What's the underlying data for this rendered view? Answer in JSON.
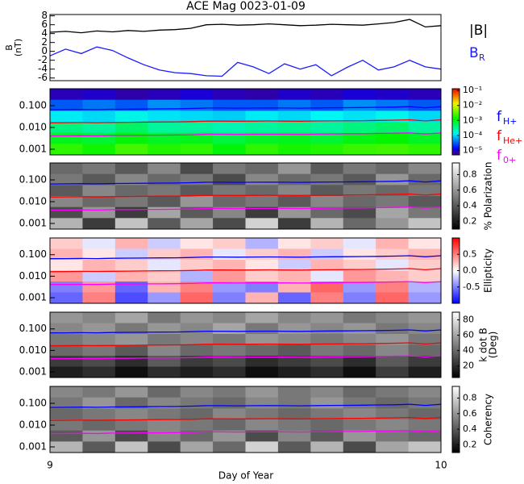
{
  "title": "ACE Mag 0023-01-09",
  "xlabel": "Day of Year",
  "xlim": [
    9,
    10
  ],
  "xticks": [
    9,
    10
  ],
  "chart_data": [
    {
      "type": "line",
      "ylabel": [
        "B",
        "(nT)"
      ],
      "ylim": [
        -6.6,
        8.3
      ],
      "yticks": [
        -6,
        -4,
        -2,
        0,
        2,
        4,
        6,
        8
      ],
      "x": [
        9.0,
        9.04,
        9.08,
        9.12,
        9.16,
        9.2,
        9.24,
        9.28,
        9.32,
        9.36,
        9.4,
        9.44,
        9.48,
        9.52,
        9.56,
        9.6,
        9.64,
        9.68,
        9.72,
        9.76,
        9.8,
        9.84,
        9.88,
        9.92,
        9.96,
        10.0
      ],
      "series": [
        {
          "name": "|B|",
          "color": "#000000",
          "values": [
            4.3,
            4.5,
            4.2,
            4.6,
            4.4,
            4.7,
            4.5,
            4.8,
            4.9,
            5.2,
            6.0,
            6.1,
            5.9,
            6.0,
            6.2,
            6.0,
            5.8,
            5.9,
            6.1,
            6.0,
            5.9,
            6.2,
            6.5,
            7.2,
            5.5,
            5.8
          ]
        },
        {
          "name": "B",
          "subscript": "R",
          "color": "#1a1aff",
          "values": [
            -1.0,
            0.5,
            -0.5,
            1.0,
            0.2,
            -1.5,
            -3.0,
            -4.2,
            -4.8,
            -5.0,
            -5.5,
            -5.6,
            -2.5,
            -3.5,
            -5.0,
            -2.8,
            -4.0,
            -3.0,
            -5.5,
            -3.6,
            -2.0,
            -4.2,
            -3.5,
            -2.0,
            -3.5,
            -4.0
          ]
        }
      ]
    },
    {
      "type": "heatmap",
      "ylog": true,
      "ylim": [
        0.00055,
        0.6
      ],
      "yticks": [
        {
          "value": 0.001,
          "label": "0.001"
        },
        {
          "value": 0.01,
          "label": "0.010"
        },
        {
          "value": 0.1,
          "label": "0.100"
        }
      ],
      "colormap": "rainbow",
      "zlog": true,
      "zlim": [
        5e-06,
        0.13
      ],
      "zticks": [
        {
          "value": 0.1,
          "label": "10⁻¹"
        },
        {
          "value": 0.01,
          "label": "10⁻²"
        },
        {
          "value": 0.001,
          "label": "10⁻³"
        },
        {
          "value": 0.0001,
          "label": "10⁻⁴"
        },
        {
          "value": 1e-05,
          "label": "10⁻⁵"
        }
      ],
      "z": [
        [
          8e-06,
          9e-06,
          7e-06,
          8e-06,
          1e-05,
          8e-06,
          7e-06,
          9e-06,
          8e-06,
          1e-05,
          9e-06,
          8e-06
        ],
        [
          3e-05,
          4e-05,
          3e-05,
          5e-05,
          4e-05,
          3e-05,
          3e-05,
          4e-05,
          3e-05,
          5e-05,
          4e-05,
          3e-05
        ],
        [
          0.00012,
          0.0001,
          0.00015,
          0.00011,
          0.0001,
          9e-05,
          0.00012,
          0.0001,
          0.00013,
          0.00011,
          0.00014,
          0.0001
        ],
        [
          0.0004,
          0.0003,
          0.0005,
          0.0003,
          0.0003,
          0.00025,
          0.0003,
          0.00035,
          0.0003,
          0.0004,
          0.0005,
          0.0003
        ],
        [
          0.001,
          0.0008,
          0.0012,
          0.0009,
          0.001,
          0.0007,
          0.0009,
          0.001,
          0.0008,
          0.0011,
          0.0013,
          0.0009
        ],
        [
          0.002,
          0.0015,
          0.0025,
          0.0018,
          0.002,
          0.0012,
          0.002,
          0.0016,
          0.0018,
          0.0022,
          0.0024,
          0.002
        ]
      ]
    },
    {
      "type": "heatmap",
      "ylog": true,
      "ylim": [
        0.00055,
        0.6
      ],
      "yticks": [
        {
          "value": 0.001,
          "label": "0.001"
        },
        {
          "value": 0.01,
          "label": "0.010"
        },
        {
          "value": 0.1,
          "label": "0.100"
        }
      ],
      "colormap": "gray",
      "zlim": [
        0.1,
        0.95
      ],
      "zticks": [
        0.2,
        0.4,
        0.6,
        0.8
      ],
      "zlabel": [
        "% Polarization"
      ],
      "z": [
        [
          0.45,
          0.5,
          0.4,
          0.55,
          0.35,
          0.5,
          0.45,
          0.6,
          0.4,
          0.5,
          0.45,
          0.55
        ],
        [
          0.5,
          0.4,
          0.55,
          0.45,
          0.5,
          0.35,
          0.55,
          0.45,
          0.5,
          0.4,
          0.6,
          0.45
        ],
        [
          0.4,
          0.55,
          0.45,
          0.5,
          0.4,
          0.5,
          0.45,
          0.55,
          0.4,
          0.5,
          0.45,
          0.5
        ],
        [
          0.55,
          0.45,
          0.5,
          0.4,
          0.6,
          0.45,
          0.5,
          0.4,
          0.55,
          0.45,
          0.5,
          0.4
        ],
        [
          0.35,
          0.6,
          0.3,
          0.65,
          0.4,
          0.55,
          0.3,
          0.6,
          0.45,
          0.35,
          0.65,
          0.5
        ],
        [
          0.7,
          0.3,
          0.75,
          0.4,
          0.65,
          0.35,
          0.8,
          0.3,
          0.7,
          0.45,
          0.6,
          0.75
        ]
      ]
    },
    {
      "type": "heatmap",
      "ylog": true,
      "ylim": [
        0.00055,
        0.6
      ],
      "yticks": [
        {
          "value": 0.001,
          "label": "0.001"
        },
        {
          "value": 0.01,
          "label": "0.010"
        },
        {
          "value": 0.1,
          "label": "0.100"
        }
      ],
      "colormap": "bwr",
      "zlim": [
        -1,
        1
      ],
      "zticks": [
        -0.5,
        {
          "value": 0,
          "label": "0.0"
        },
        0.5
      ],
      "zlabel": [
        "Ellipticity"
      ],
      "z": [
        [
          0.2,
          -0.1,
          0.3,
          -0.2,
          0.1,
          0.2,
          -0.3,
          0.1,
          0.2,
          -0.1,
          0.3,
          0.1
        ],
        [
          0.3,
          0.1,
          -0.2,
          0.2,
          0.3,
          -0.1,
          0.2,
          0.3,
          -0.2,
          0.1,
          0.2,
          0.3
        ],
        [
          0.1,
          0.3,
          0.2,
          -0.1,
          0.2,
          0.3,
          0.1,
          -0.2,
          0.3,
          0.2,
          -0.1,
          0.2
        ],
        [
          0.4,
          -0.2,
          0.3,
          0.2,
          -0.3,
          0.4,
          0.2,
          0.3,
          -0.1,
          0.4,
          0.3,
          0.2
        ],
        [
          -0.5,
          0.4,
          -0.6,
          0.3,
          0.5,
          -0.4,
          -0.5,
          0.3,
          0.6,
          -0.4,
          0.5,
          -0.3
        ],
        [
          -0.6,
          0.5,
          -0.7,
          -0.4,
          0.6,
          -0.5,
          0.3,
          -0.6,
          0.5,
          -0.5,
          0.6,
          -0.4
        ]
      ]
    },
    {
      "type": "heatmap",
      "ylog": true,
      "ylim": [
        0.00055,
        0.6
      ],
      "yticks": [
        {
          "value": 0.001,
          "label": "0.001"
        },
        {
          "value": 0.01,
          "label": "0.010"
        },
        {
          "value": 0.1,
          "label": "0.100"
        }
      ],
      "colormap": "gray",
      "zlim": [
        5,
        90
      ],
      "zticks": [
        20,
        40,
        60,
        80
      ],
      "zlabel": [
        "k dot B",
        "(Deg)"
      ],
      "z": [
        [
          55,
          50,
          60,
          45,
          55,
          50,
          60,
          50,
          55,
          45,
          50,
          55
        ],
        [
          50,
          55,
          45,
          55,
          50,
          60,
          45,
          55,
          50,
          55,
          45,
          50
        ],
        [
          45,
          50,
          55,
          45,
          50,
          45,
          55,
          50,
          45,
          50,
          55,
          45
        ],
        [
          40,
          45,
          35,
          50,
          40,
          45,
          40,
          35,
          45,
          40,
          50,
          40
        ],
        [
          25,
          30,
          20,
          35,
          25,
          30,
          20,
          25,
          30,
          20,
          35,
          25
        ],
        [
          15,
          20,
          10,
          20,
          15,
          20,
          10,
          15,
          20,
          10,
          25,
          15
        ]
      ]
    },
    {
      "type": "heatmap",
      "ylog": true,
      "ylim": [
        0.00055,
        0.6
      ],
      "yticks": [
        {
          "value": 0.001,
          "label": "0.001"
        },
        {
          "value": 0.01,
          "label": "0.010"
        },
        {
          "value": 0.1,
          "label": "0.100"
        }
      ],
      "colormap": "gray",
      "zlim": [
        0.1,
        0.95
      ],
      "zticks": [
        0.2,
        0.4,
        0.6,
        0.8
      ],
      "zlabel": [
        "Coherency"
      ],
      "z": [
        [
          0.55,
          0.5,
          0.6,
          0.45,
          0.55,
          0.5,
          0.6,
          0.5,
          0.55,
          0.45,
          0.5,
          0.55
        ],
        [
          0.5,
          0.6,
          0.45,
          0.55,
          0.5,
          0.45,
          0.55,
          0.5,
          0.6,
          0.5,
          0.45,
          0.5
        ],
        [
          0.45,
          0.5,
          0.55,
          0.5,
          0.45,
          0.55,
          0.5,
          0.45,
          0.5,
          0.55,
          0.5,
          0.45
        ],
        [
          0.5,
          0.45,
          0.5,
          0.55,
          0.5,
          0.45,
          0.55,
          0.5,
          0.45,
          0.5,
          0.55,
          0.5
        ],
        [
          0.4,
          0.6,
          0.35,
          0.55,
          0.45,
          0.6,
          0.35,
          0.55,
          0.4,
          0.6,
          0.5,
          0.45
        ],
        [
          0.7,
          0.4,
          0.75,
          0.35,
          0.65,
          0.45,
          0.8,
          0.4,
          0.7,
          0.35,
          0.65,
          0.75
        ]
      ]
    }
  ],
  "overlay": {
    "x": [
      9.0,
      9.04,
      9.08,
      9.12,
      9.16,
      9.2,
      9.24,
      9.28,
      9.32,
      9.36,
      9.4,
      9.44,
      9.48,
      9.52,
      9.56,
      9.6,
      9.64,
      9.68,
      9.72,
      9.76,
      9.8,
      9.84,
      9.88,
      9.92,
      9.96,
      10.0
    ],
    "series": [
      {
        "name": "f",
        "subscript": "H+",
        "color": "#0000ff",
        "values": [
          0.065,
          0.066,
          0.067,
          0.066,
          0.068,
          0.069,
          0.07,
          0.071,
          0.072,
          0.074,
          0.078,
          0.078,
          0.077,
          0.078,
          0.079,
          0.078,
          0.077,
          0.079,
          0.08,
          0.081,
          0.082,
          0.084,
          0.086,
          0.09,
          0.08,
          0.09
        ]
      },
      {
        "name": "f",
        "subscript": "He+",
        "color": "#ff0000",
        "values": [
          0.0163,
          0.0165,
          0.0168,
          0.0166,
          0.017,
          0.0172,
          0.0175,
          0.0178,
          0.018,
          0.0185,
          0.0195,
          0.0195,
          0.0193,
          0.0195,
          0.0198,
          0.0195,
          0.0193,
          0.0198,
          0.02,
          0.0203,
          0.0205,
          0.021,
          0.0215,
          0.0225,
          0.02,
          0.0225
        ]
      },
      {
        "name": "f",
        "subscript": "0+",
        "color": "#ff00ff",
        "values": [
          0.0041,
          0.0041,
          0.0042,
          0.0041,
          0.0043,
          0.0043,
          0.0044,
          0.0044,
          0.0045,
          0.0046,
          0.0049,
          0.0049,
          0.0048,
          0.0049,
          0.0049,
          0.0049,
          0.0048,
          0.0049,
          0.005,
          0.0051,
          0.0051,
          0.0053,
          0.0054,
          0.0056,
          0.005,
          0.0056
        ]
      }
    ]
  }
}
